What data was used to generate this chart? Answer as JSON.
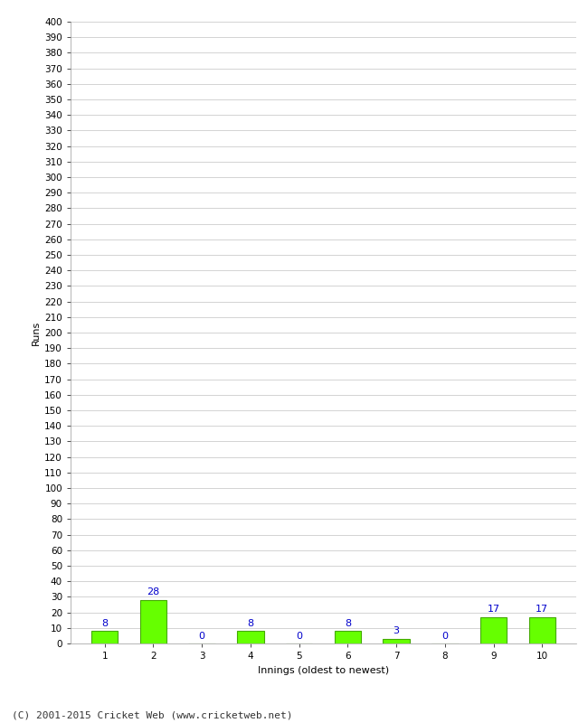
{
  "xlabel": "Innings (oldest to newest)",
  "ylabel": "Runs",
  "categories": [
    "1",
    "2",
    "3",
    "4",
    "5",
    "6",
    "7",
    "8",
    "9",
    "10"
  ],
  "values": [
    8,
    28,
    0,
    8,
    0,
    8,
    3,
    0,
    17,
    17
  ],
  "bar_color": "#66ff00",
  "bar_edge_color": "#44aa00",
  "label_color": "#0000cc",
  "ylim": [
    0,
    400
  ],
  "yticks": [
    0,
    10,
    20,
    30,
    40,
    50,
    60,
    70,
    80,
    90,
    100,
    110,
    120,
    130,
    140,
    150,
    160,
    170,
    180,
    190,
    200,
    210,
    220,
    230,
    240,
    250,
    260,
    270,
    280,
    290,
    300,
    310,
    320,
    330,
    340,
    350,
    360,
    370,
    380,
    390,
    400
  ],
  "footer": "(C) 2001-2015 Cricket Web (www.cricketweb.net)",
  "background_color": "#ffffff",
  "grid_color": "#cccccc",
  "axis_label_fontsize": 8,
  "tick_fontsize": 7.5,
  "value_label_fontsize": 8,
  "footer_fontsize": 8
}
